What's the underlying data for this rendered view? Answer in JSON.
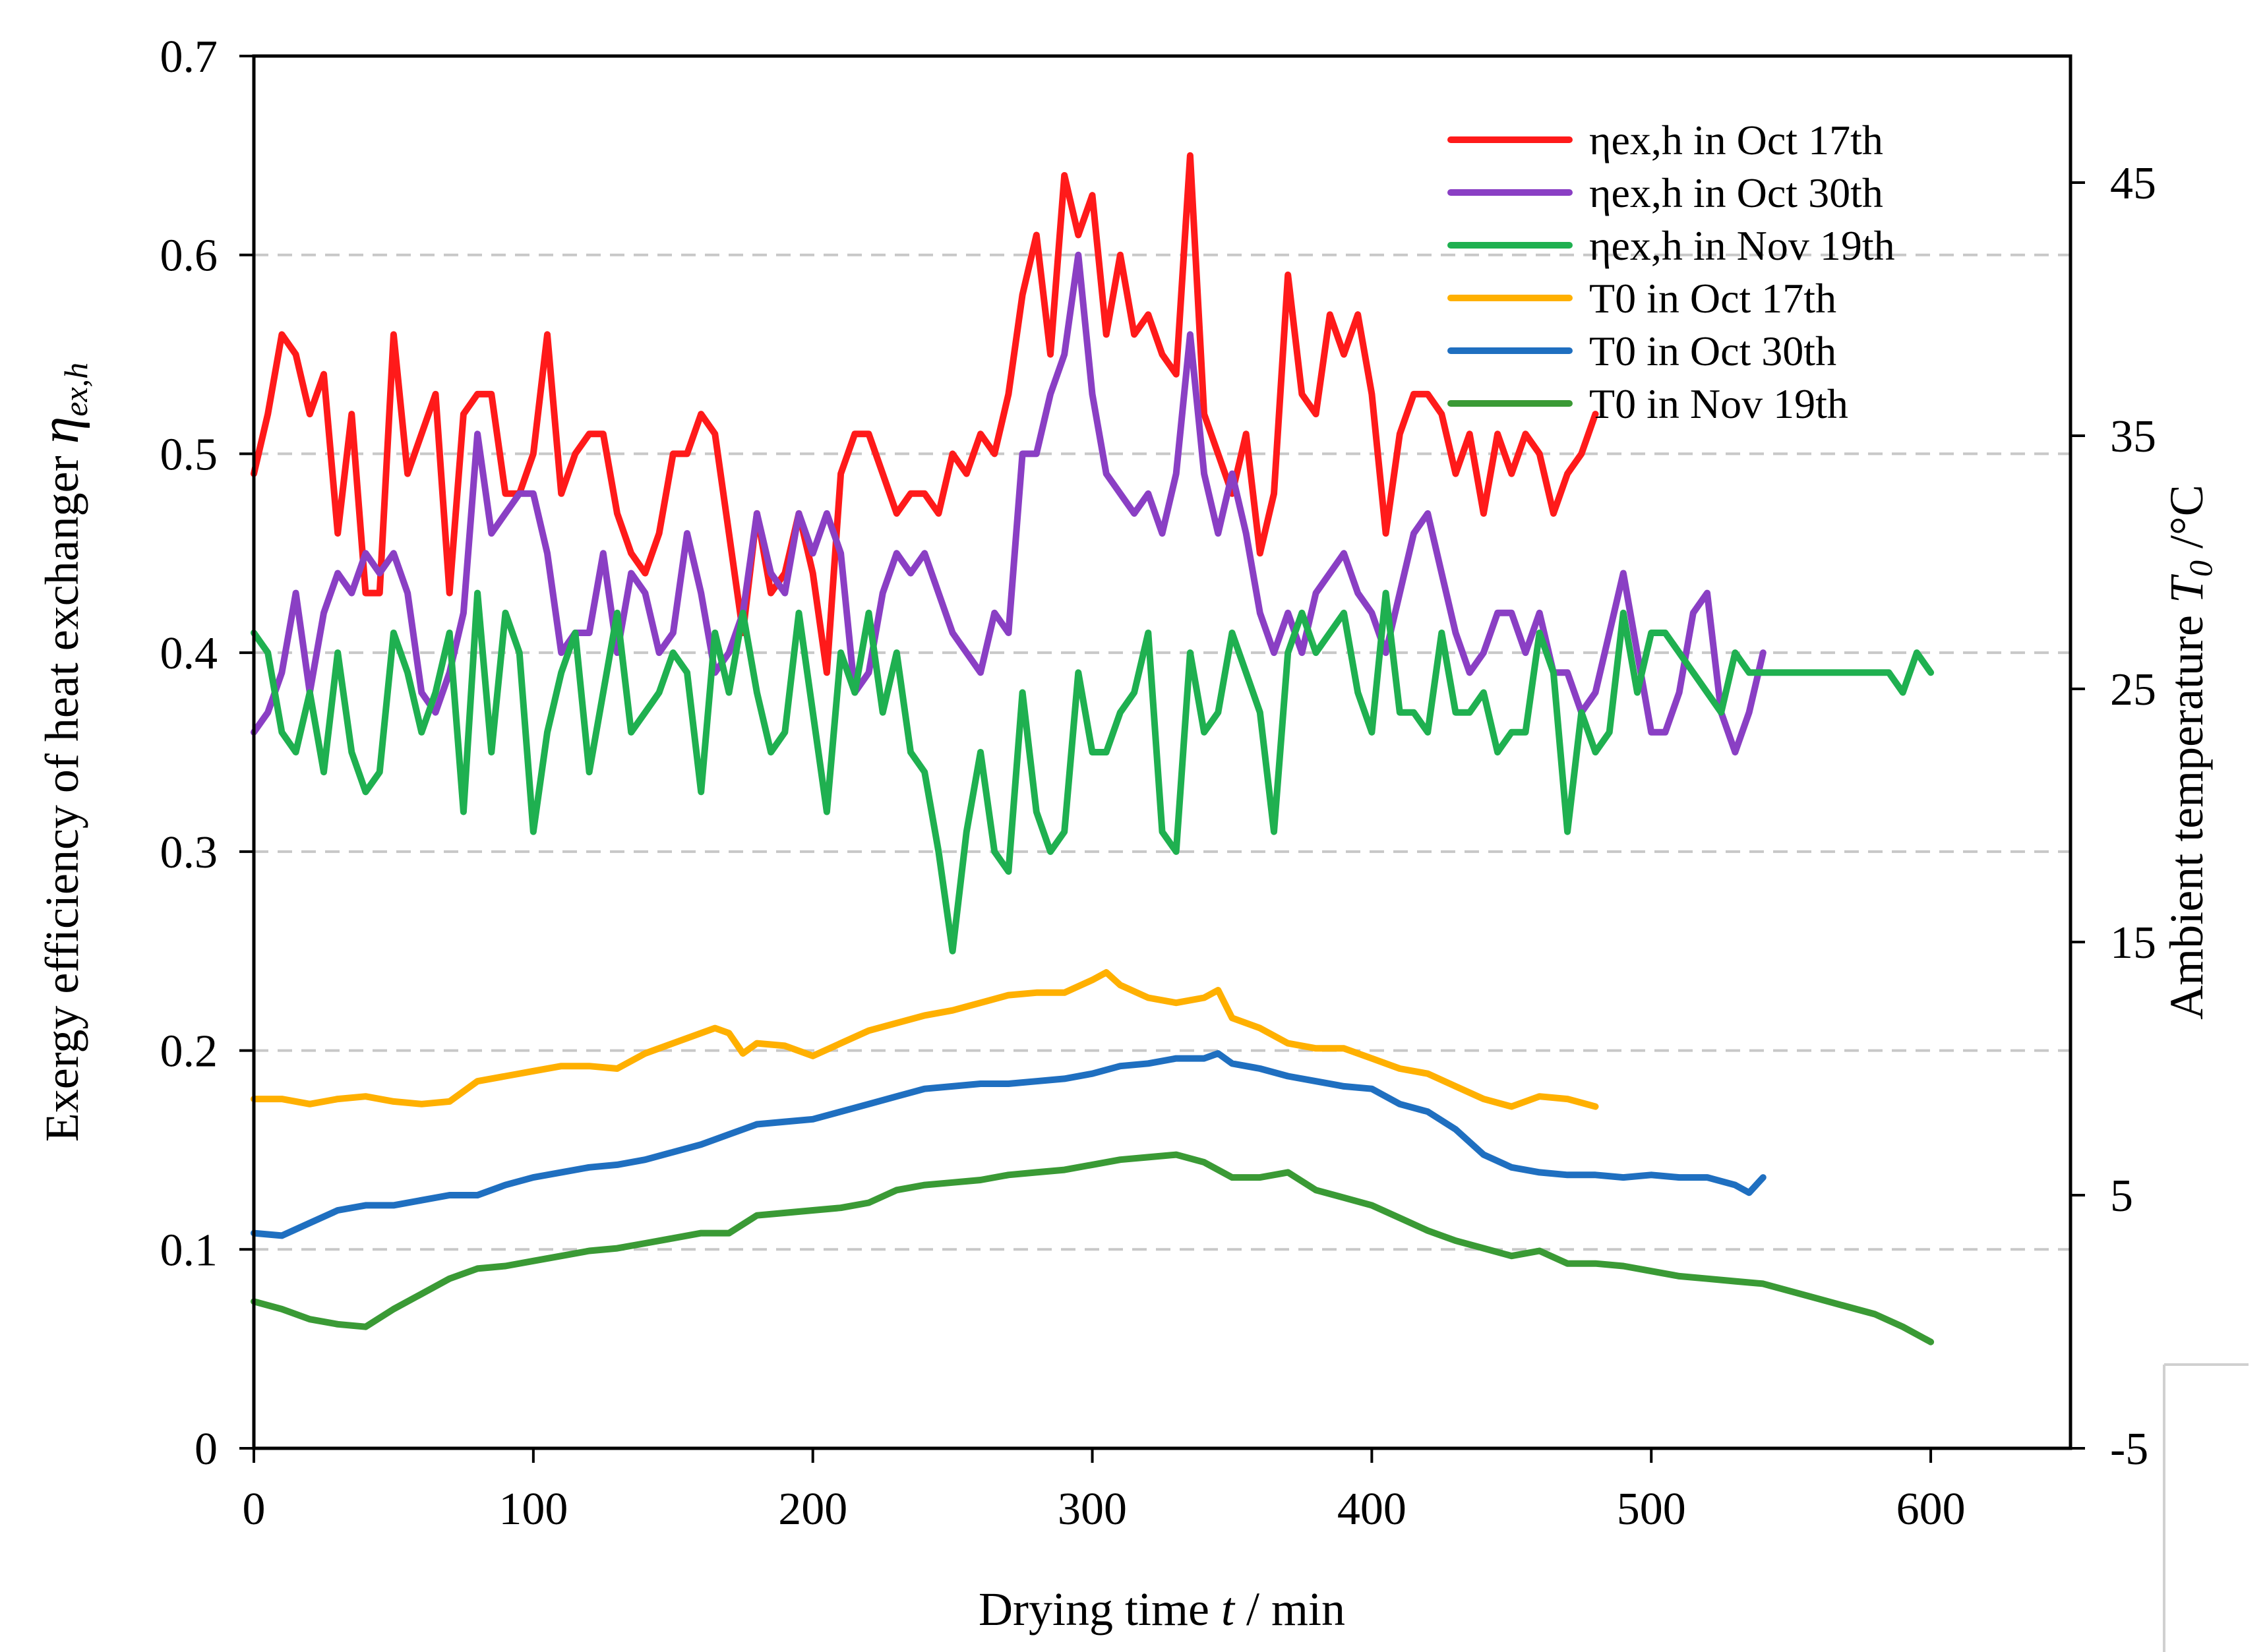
{
  "chart_data": {
    "type": "line",
    "xlabel_pre": "Drying time ",
    "xlabel_var": "t",
    "xlabel_post": " / min",
    "ylabel_left_pre": "Exergy efficiency of heat exchanger ",
    "ylabel_left_var": "η",
    "ylabel_left_sub": "ex,h",
    "ylabel_right_pre": "Ambient temperature ",
    "ylabel_right_var": "T",
    "ylabel_right_sub": "0",
    "ylabel_right_post": " /°C",
    "xlim": [
      0,
      650
    ],
    "ylim_left": [
      0,
      0.7
    ],
    "ylim_right": [
      -5,
      50
    ],
    "xticks": [
      "0",
      "100",
      "200",
      "300",
      "400",
      "500",
      "600"
    ],
    "yticks_left": [
      "0",
      "0.1",
      "0.2",
      "0.3",
      "0.4",
      "0.5",
      "0.6",
      "0.7"
    ],
    "yticks_right": [
      "-5",
      "5",
      "15",
      "25",
      "35",
      "45"
    ],
    "gridlines_left": [
      0.1,
      0.2,
      0.3,
      0.4,
      0.5,
      0.6
    ],
    "legend_position": "top-right",
    "series": [
      {
        "name": "ηex,h in Oct 17th",
        "axis": "left",
        "color": "#ff1a1a",
        "x": [
          0,
          5,
          10,
          15,
          20,
          25,
          30,
          35,
          40,
          45,
          50,
          55,
          60,
          65,
          70,
          75,
          80,
          85,
          90,
          95,
          100,
          105,
          110,
          115,
          120,
          125,
          130,
          135,
          140,
          145,
          150,
          155,
          160,
          165,
          170,
          175,
          180,
          185,
          190,
          195,
          200,
          205,
          210,
          215,
          220,
          225,
          230,
          235,
          240,
          245,
          250,
          255,
          260,
          265,
          270,
          275,
          280,
          285,
          290,
          295,
          300,
          305,
          310,
          315,
          320,
          325,
          330,
          335,
          340,
          345,
          350,
          355,
          360,
          365,
          370,
          375,
          380,
          385,
          390,
          395,
          400,
          405,
          410,
          415,
          420,
          425,
          430,
          435,
          440,
          445,
          450,
          455,
          460,
          465,
          470,
          475,
          480
        ],
        "y": [
          0.49,
          0.52,
          0.56,
          0.55,
          0.52,
          0.54,
          0.46,
          0.52,
          0.43,
          0.43,
          0.56,
          0.49,
          0.51,
          0.53,
          0.43,
          0.52,
          0.53,
          0.53,
          0.48,
          0.48,
          0.5,
          0.56,
          0.48,
          0.5,
          0.51,
          0.51,
          0.47,
          0.45,
          0.44,
          0.46,
          0.5,
          0.5,
          0.52,
          0.51,
          0.46,
          0.41,
          0.47,
          0.43,
          0.44,
          0.47,
          0.44,
          0.39,
          0.49,
          0.51,
          0.51,
          0.49,
          0.47,
          0.48,
          0.48,
          0.47,
          0.5,
          0.49,
          0.51,
          0.5,
          0.53,
          0.58,
          0.61,
          0.55,
          0.64,
          0.61,
          0.63,
          0.56,
          0.6,
          0.56,
          0.57,
          0.55,
          0.54,
          0.65,
          0.52,
          0.5,
          0.48,
          0.51,
          0.45,
          0.48,
          0.59,
          0.53,
          0.52,
          0.57,
          0.55,
          0.57,
          0.53,
          0.46,
          0.51,
          0.53,
          0.53,
          0.52,
          0.49,
          0.51,
          0.47,
          0.51,
          0.49,
          0.51,
          0.5,
          0.47,
          0.49,
          0.5,
          0.52
        ]
      },
      {
        "name": "ηex,h in Oct 30th",
        "axis": "left",
        "color": "#8a3fc4",
        "x": [
          0,
          5,
          10,
          15,
          20,
          25,
          30,
          35,
          40,
          45,
          50,
          55,
          60,
          65,
          70,
          75,
          80,
          85,
          90,
          95,
          100,
          105,
          110,
          115,
          120,
          125,
          130,
          135,
          140,
          145,
          150,
          155,
          160,
          165,
          170,
          175,
          180,
          185,
          190,
          195,
          200,
          205,
          210,
          215,
          220,
          225,
          230,
          235,
          240,
          245,
          250,
          255,
          260,
          265,
          270,
          275,
          280,
          285,
          290,
          295,
          300,
          305,
          310,
          315,
          320,
          325,
          330,
          335,
          340,
          345,
          350,
          355,
          360,
          365,
          370,
          375,
          380,
          385,
          390,
          395,
          400,
          405,
          410,
          415,
          420,
          425,
          430,
          435,
          440,
          445,
          450,
          455,
          460,
          465,
          470,
          475,
          480,
          485,
          490,
          495,
          500,
          505,
          510,
          515,
          520,
          525,
          530,
          535,
          540
        ],
        "y": [
          0.36,
          0.37,
          0.39,
          0.43,
          0.38,
          0.42,
          0.44,
          0.43,
          0.45,
          0.44,
          0.45,
          0.43,
          0.38,
          0.37,
          0.39,
          0.42,
          0.51,
          0.46,
          0.47,
          0.48,
          0.48,
          0.45,
          0.4,
          0.41,
          0.41,
          0.45,
          0.4,
          0.44,
          0.43,
          0.4,
          0.41,
          0.46,
          0.43,
          0.39,
          0.4,
          0.42,
          0.47,
          0.44,
          0.43,
          0.47,
          0.45,
          0.47,
          0.45,
          0.38,
          0.39,
          0.43,
          0.45,
          0.44,
          0.45,
          0.43,
          0.41,
          0.4,
          0.39,
          0.42,
          0.41,
          0.5,
          0.5,
          0.53,
          0.55,
          0.6,
          0.53,
          0.49,
          0.48,
          0.47,
          0.48,
          0.46,
          0.49,
          0.56,
          0.49,
          0.46,
          0.49,
          0.46,
          0.42,
          0.4,
          0.42,
          0.4,
          0.43,
          0.44,
          0.45,
          0.43,
          0.42,
          0.4,
          0.43,
          0.46,
          0.47,
          0.44,
          0.41,
          0.39,
          0.4,
          0.42,
          0.42,
          0.4,
          0.42,
          0.39,
          0.39,
          0.37,
          0.38,
          0.41,
          0.44,
          0.4,
          0.36,
          0.36,
          0.38,
          0.42,
          0.43,
          0.37,
          0.35,
          0.37,
          0.4
        ]
      },
      {
        "name": "ηex,h in Nov 19th",
        "axis": "left",
        "color": "#1fb050",
        "x": [
          0,
          5,
          10,
          15,
          20,
          25,
          30,
          35,
          40,
          45,
          50,
          55,
          60,
          65,
          70,
          75,
          80,
          85,
          90,
          95,
          100,
          105,
          110,
          115,
          120,
          125,
          130,
          135,
          140,
          145,
          150,
          155,
          160,
          165,
          170,
          175,
          180,
          185,
          190,
          195,
          200,
          205,
          210,
          215,
          220,
          225,
          230,
          235,
          240,
          245,
          250,
          255,
          260,
          265,
          270,
          275,
          280,
          285,
          290,
          295,
          300,
          305,
          310,
          315,
          320,
          325,
          330,
          335,
          340,
          345,
          350,
          355,
          360,
          365,
          370,
          375,
          380,
          385,
          390,
          395,
          400,
          405,
          410,
          415,
          420,
          425,
          430,
          435,
          440,
          445,
          450,
          455,
          460,
          465,
          470,
          475,
          480,
          485,
          490,
          495,
          500,
          505,
          510,
          515,
          520,
          525,
          530,
          535,
          540,
          545,
          550,
          555,
          560,
          565,
          570,
          575,
          580,
          585,
          590,
          595,
          600
        ],
        "y": [
          0.41,
          0.4,
          0.36,
          0.35,
          0.38,
          0.34,
          0.4,
          0.35,
          0.33,
          0.34,
          0.41,
          0.39,
          0.36,
          0.38,
          0.41,
          0.32,
          0.43,
          0.35,
          0.42,
          0.4,
          0.31,
          0.36,
          0.39,
          0.41,
          0.34,
          0.38,
          0.42,
          0.36,
          0.37,
          0.38,
          0.4,
          0.39,
          0.33,
          0.41,
          0.38,
          0.42,
          0.38,
          0.35,
          0.36,
          0.42,
          0.37,
          0.32,
          0.4,
          0.38,
          0.42,
          0.37,
          0.4,
          0.35,
          0.34,
          0.3,
          0.25,
          0.31,
          0.35,
          0.3,
          0.29,
          0.38,
          0.32,
          0.3,
          0.31,
          0.39,
          0.35,
          0.35,
          0.37,
          0.38,
          0.41,
          0.31,
          0.3,
          0.4,
          0.36,
          0.37,
          0.41,
          0.39,
          0.37,
          0.31,
          0.4,
          0.42,
          0.4,
          0.41,
          0.42,
          0.38,
          0.36,
          0.43,
          0.37,
          0.37,
          0.36,
          0.41,
          0.37,
          0.37,
          0.38,
          0.35,
          0.36,
          0.36,
          0.41,
          0.39,
          0.31,
          0.37,
          0.35,
          0.36,
          0.42,
          0.38,
          0.41,
          0.41,
          0.4,
          0.39,
          0.38,
          0.37,
          0.4,
          0.39,
          0.39,
          0.39,
          0.39,
          0.39,
          0.39,
          0.39,
          0.39,
          0.39,
          0.39,
          0.39,
          0.38,
          0.4,
          0.39
        ]
      },
      {
        "name": "T0 in Oct 17th",
        "axis": "right",
        "color": "#ffb000",
        "x": [
          0,
          10,
          20,
          30,
          40,
          50,
          60,
          70,
          80,
          90,
          100,
          110,
          120,
          130,
          140,
          150,
          160,
          165,
          170,
          175,
          180,
          190,
          200,
          210,
          220,
          230,
          240,
          250,
          260,
          270,
          280,
          290,
          300,
          305,
          310,
          320,
          330,
          340,
          345,
          350,
          360,
          370,
          380,
          390,
          400,
          410,
          420,
          430,
          440,
          450,
          460,
          470,
          480
        ],
        "y": [
          8.8,
          8.8,
          8.6,
          8.8,
          8.9,
          8.7,
          8.6,
          8.7,
          9.5,
          9.7,
          9.9,
          10.1,
          10.1,
          10.0,
          10.6,
          11.0,
          11.4,
          11.6,
          11.4,
          10.6,
          11.0,
          10.9,
          10.5,
          11.0,
          11.5,
          11.8,
          12.1,
          12.3,
          12.6,
          12.9,
          13.0,
          13.0,
          13.5,
          13.8,
          13.3,
          12.8,
          12.6,
          12.8,
          13.1,
          12.0,
          11.6,
          11.0,
          10.8,
          10.8,
          10.4,
          10.0,
          9.8,
          9.3,
          8.8,
          8.5,
          8.9,
          8.8,
          8.5
        ]
      },
      {
        "name": "T0 in Oct 30th",
        "axis": "right",
        "color": "#1f6fc0",
        "x": [
          0,
          10,
          20,
          30,
          40,
          50,
          60,
          70,
          80,
          90,
          100,
          110,
          120,
          130,
          140,
          150,
          160,
          170,
          180,
          190,
          200,
          210,
          220,
          230,
          240,
          250,
          260,
          270,
          280,
          290,
          300,
          310,
          320,
          330,
          340,
          345,
          350,
          360,
          370,
          380,
          390,
          400,
          410,
          420,
          430,
          440,
          450,
          460,
          470,
          480,
          490,
          500,
          510,
          520,
          530,
          535,
          540
        ],
        "y": [
          3.5,
          3.4,
          3.9,
          4.4,
          4.6,
          4.6,
          4.8,
          5.0,
          5.0,
          5.4,
          5.7,
          5.9,
          6.1,
          6.2,
          6.4,
          6.7,
          7.0,
          7.4,
          7.8,
          7.9,
          8.0,
          8.3,
          8.6,
          8.9,
          9.2,
          9.3,
          9.4,
          9.4,
          9.5,
          9.6,
          9.8,
          10.1,
          10.2,
          10.4,
          10.4,
          10.6,
          10.2,
          10.0,
          9.7,
          9.5,
          9.3,
          9.2,
          8.6,
          8.3,
          7.6,
          6.6,
          6.1,
          5.9,
          5.8,
          5.8,
          5.7,
          5.8,
          5.7,
          5.7,
          5.4,
          5.1,
          5.7
        ]
      },
      {
        "name": "T0 in Nov 19th",
        "axis": "right",
        "color": "#3a9a35",
        "x": [
          0,
          10,
          20,
          30,
          40,
          50,
          60,
          70,
          80,
          90,
          100,
          110,
          120,
          130,
          140,
          150,
          160,
          170,
          180,
          190,
          200,
          210,
          220,
          230,
          240,
          250,
          260,
          270,
          280,
          290,
          300,
          310,
          320,
          330,
          340,
          350,
          360,
          370,
          380,
          390,
          400,
          410,
          420,
          430,
          440,
          450,
          460,
          470,
          480,
          490,
          500,
          510,
          520,
          530,
          540,
          550,
          560,
          570,
          580,
          590,
          600
        ],
        "y": [
          0.8,
          0.5,
          0.1,
          -0.1,
          -0.2,
          0.5,
          1.1,
          1.7,
          2.1,
          2.2,
          2.4,
          2.6,
          2.8,
          2.9,
          3.1,
          3.3,
          3.5,
          3.5,
          4.2,
          4.3,
          4.4,
          4.5,
          4.7,
          5.2,
          5.4,
          5.5,
          5.6,
          5.8,
          5.9,
          6.0,
          6.2,
          6.4,
          6.5,
          6.6,
          6.3,
          5.7,
          5.7,
          5.9,
          5.2,
          4.9,
          4.6,
          4.1,
          3.6,
          3.2,
          2.9,
          2.6,
          2.8,
          2.3,
          2.3,
          2.2,
          2.0,
          1.8,
          1.7,
          1.6,
          1.5,
          1.2,
          0.9,
          0.6,
          0.3,
          -0.2,
          -0.8
        ]
      }
    ]
  }
}
